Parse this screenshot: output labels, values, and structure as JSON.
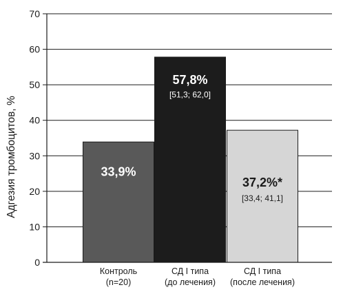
{
  "chart_data": {
    "type": "bar",
    "ylabel": "Адгезия тромбоцитов, %",
    "ylim": [
      0,
      70
    ],
    "yticks": [
      0,
      10,
      20,
      30,
      40,
      50,
      60,
      70
    ],
    "grid": true,
    "categories": [
      [
        "Контроль",
        "(n=20)"
      ],
      [
        "СД I типа",
        "(до лечения)"
      ],
      [
        "СД I типа",
        "(после лечения)"
      ]
    ],
    "values": [
      33.9,
      57.8,
      37.2
    ],
    "value_labels": [
      "33,9%",
      "57,8%",
      "37,2%*"
    ],
    "ci_labels": [
      "",
      "[51,3; 62,0]",
      "[33,4; 41,1]"
    ],
    "colors": [
      "#595959",
      "#1c1c1c",
      "#d6d6d6"
    ],
    "label_colors": [
      "#ffffff",
      "#ffffff",
      "#1a1a1a"
    ]
  }
}
